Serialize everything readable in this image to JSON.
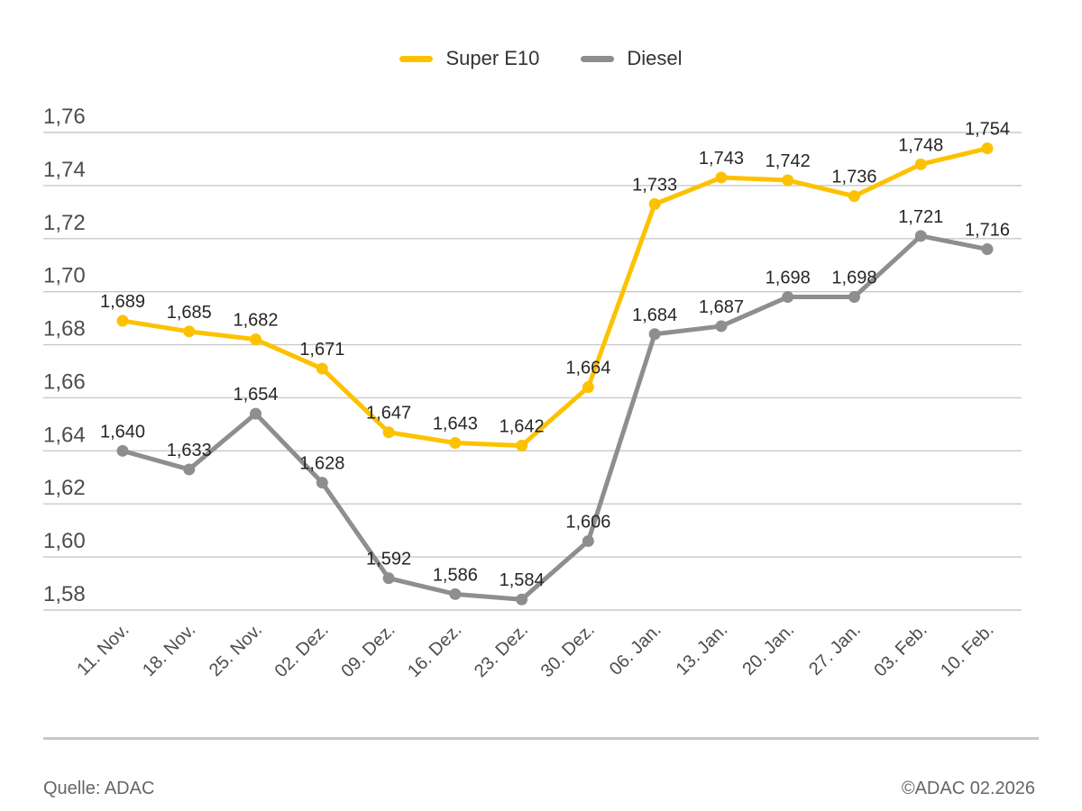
{
  "chart_data": {
    "type": "line",
    "categories": [
      "11. Nov.",
      "18. Nov.",
      "25. Nov.",
      "02. Dez.",
      "09. Dez.",
      "16. Dez.",
      "23. Dez.",
      "30. Dez.",
      "06. Jan.",
      "13. Jan.",
      "20. Jan.",
      "27. Jan.",
      "03. Feb.",
      "10. Feb."
    ],
    "series": [
      {
        "name": "Super E10",
        "color": "#FCC200",
        "values": [
          1.689,
          1.685,
          1.682,
          1.671,
          1.647,
          1.643,
          1.642,
          1.664,
          1.733,
          1.743,
          1.742,
          1.736,
          1.748,
          1.754
        ]
      },
      {
        "name": "Diesel",
        "color": "#8E8E8E",
        "values": [
          1.64,
          1.633,
          1.654,
          1.628,
          1.592,
          1.586,
          1.584,
          1.606,
          1.684,
          1.687,
          1.698,
          1.698,
          1.721,
          1.716
        ]
      }
    ],
    "title": "",
    "xlabel": "",
    "ylabel": "",
    "ylim": [
      1.58,
      1.76
    ],
    "ytick_step": 0.02,
    "ytick_labels": [
      "1,76",
      "1,74",
      "1,72",
      "1,70",
      "1,68",
      "1,66",
      "1,64",
      "1,62",
      "1,60",
      "1,58"
    ],
    "decimal_separator": ",",
    "grid": true,
    "legend_position": "top-center",
    "colors": {
      "gridline": "#c9c9c9",
      "axis_label": "#4d4d4d",
      "data_label": "#262626"
    }
  },
  "footer": {
    "source": "Quelle: ADAC",
    "copyright": "©ADAC 02.2026"
  }
}
